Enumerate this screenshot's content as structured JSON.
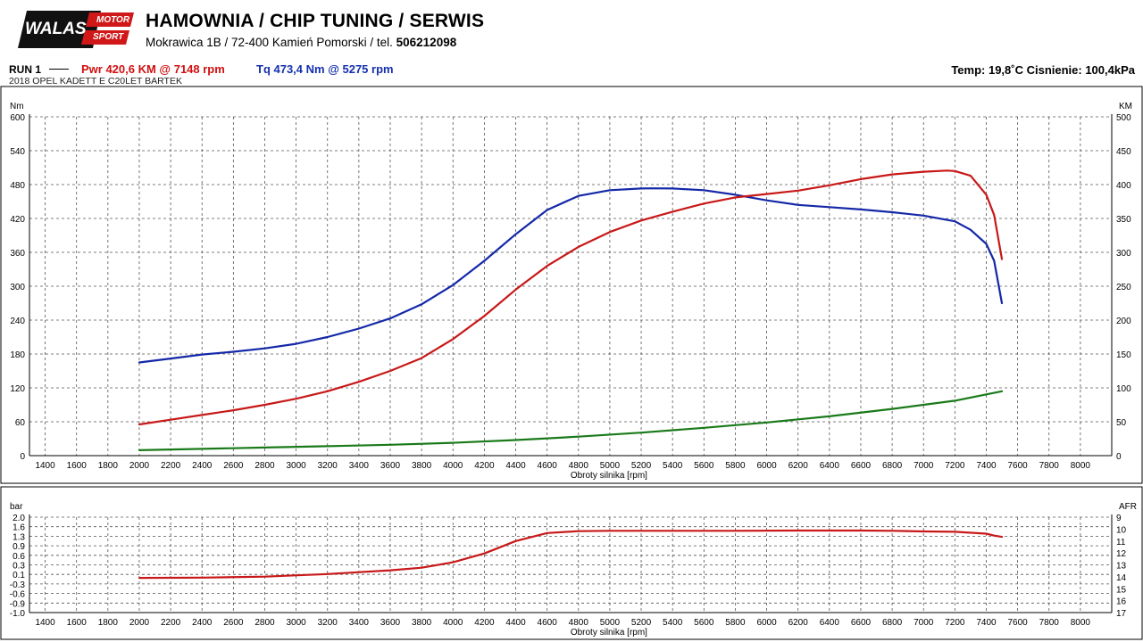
{
  "header": {
    "logo_word": "WALAS",
    "logo_motor": "MOTOR",
    "logo_sport": "SPORT",
    "title": "HAMOWNIA / CHIP TUNING / SERWIS",
    "address": "Mokrawica 1B / 72-400 Kamień Pomorski / tel.",
    "phone": "506212098"
  },
  "run": {
    "label": "RUN 1",
    "pwr_text": "Pwr  420,6 KM @ 7148 rpm",
    "tq_text": "Tq 473,4 Nm @ 5275 rpm",
    "env_text": "Temp: 19,8˚C   Cisnienie: 100,4kPa",
    "car": "2018 OPEL KADETT E C20LET BARTEK"
  },
  "colors": {
    "power": "#c81818",
    "torque": "#1428a8",
    "loss": "#1a7a1a",
    "boost": "#c81818",
    "grid": "#555555"
  },
  "chart_data": [
    {
      "type": "line",
      "xlabel": "Obroty silnika [rpm]",
      "ylabel_left": "Nm",
      "ylabel_right": "KM",
      "xlim": [
        1300,
        8200
      ],
      "ylim_left": [
        0,
        600
      ],
      "ylim_right": [
        0,
        500
      ],
      "x_ticks": [
        1400,
        1600,
        1800,
        2000,
        2200,
        2400,
        2600,
        2800,
        3000,
        3200,
        3400,
        3600,
        3800,
        4000,
        4200,
        4400,
        4600,
        4800,
        5000,
        5200,
        5400,
        5600,
        5800,
        6000,
        6200,
        6400,
        6600,
        6800,
        7000,
        7200,
        7400,
        7600,
        7800,
        8000
      ],
      "y_ticks_left": [
        0,
        60,
        120,
        180,
        240,
        300,
        360,
        420,
        480,
        540,
        600
      ],
      "y_ticks_right": [
        0,
        50,
        100,
        150,
        200,
        250,
        300,
        350,
        400,
        450,
        500
      ],
      "series": [
        {
          "key": "torque",
          "axis": "left",
          "x": [
            2000,
            2200,
            2400,
            2600,
            2800,
            3000,
            3200,
            3400,
            3600,
            3800,
            4000,
            4200,
            4400,
            4600,
            4800,
            5000,
            5200,
            5275,
            5400,
            5600,
            5800,
            6000,
            6200,
            6400,
            6600,
            6800,
            7000,
            7200,
            7300,
            7400,
            7450,
            7500
          ],
          "y": [
            165,
            172,
            179,
            184,
            190,
            198,
            210,
            225,
            243,
            268,
            302,
            345,
            392,
            435,
            460,
            470,
            473,
            473.4,
            473,
            470,
            462,
            452,
            444,
            440,
            436,
            431,
            425,
            415,
            400,
            375,
            345,
            270
          ]
        },
        {
          "key": "power",
          "axis": "right",
          "x": [
            2000,
            2200,
            2400,
            2600,
            2800,
            3000,
            3200,
            3400,
            3600,
            3800,
            4000,
            4200,
            4400,
            4600,
            4800,
            5000,
            5200,
            5400,
            5600,
            5800,
            6000,
            6200,
            6400,
            6600,
            6800,
            7000,
            7148,
            7200,
            7300,
            7400,
            7450,
            7500
          ],
          "y": [
            46,
            53,
            60,
            67,
            75,
            84,
            95,
            109,
            125,
            144,
            172,
            206,
            245,
            280,
            308,
            330,
            347,
            360,
            372,
            381,
            386,
            391,
            399,
            408,
            415,
            419,
            420.6,
            420,
            413,
            385,
            355,
            290
          ]
        },
        {
          "key": "loss",
          "axis": "right",
          "x": [
            2000,
            2400,
            2800,
            3200,
            3600,
            4000,
            4400,
            4800,
            5200,
            5600,
            6000,
            6400,
            6800,
            7200,
            7500
          ],
          "y": [
            8,
            10,
            12,
            14,
            16,
            19,
            23,
            28,
            34,
            41,
            49,
            58,
            69,
            81,
            95
          ]
        }
      ]
    },
    {
      "type": "line",
      "xlabel": "Obroty silnika [rpm]",
      "ylabel_left": "bar",
      "ylabel_right": "AFR",
      "xlim": [
        1300,
        8200
      ],
      "ylim_left": [
        -1.0,
        2.0
      ],
      "ylim_right": [
        17,
        9
      ],
      "x_ticks": [
        1400,
        1600,
        1800,
        2000,
        2200,
        2400,
        2600,
        2800,
        3000,
        3200,
        3400,
        3600,
        3800,
        4000,
        4200,
        4400,
        4600,
        4800,
        5000,
        5200,
        5400,
        5600,
        5800,
        6000,
        6200,
        6400,
        6600,
        6800,
        7000,
        7200,
        7400,
        7600,
        7800,
        8000
      ],
      "y_ticks_left": [
        "2.0",
        "1.6",
        "1.3",
        "0.9",
        "0.6",
        "0.3",
        "0.1",
        "-0.3",
        "-0.6",
        "-0.9",
        "-1.0"
      ],
      "y_ticks_right": [
        9,
        10,
        11,
        12,
        13,
        14,
        15,
        16,
        17
      ],
      "series": [
        {
          "key": "boost",
          "axis": "left",
          "x": [
            2000,
            2400,
            2800,
            3200,
            3600,
            3800,
            4000,
            4200,
            4400,
            4600,
            4800,
            5000,
            5400,
            5800,
            6200,
            6600,
            6800,
            7000,
            7200,
            7400,
            7450,
            7500
          ],
          "y": [
            0.09,
            0.1,
            0.13,
            0.21,
            0.33,
            0.41,
            0.58,
            0.86,
            1.25,
            1.5,
            1.56,
            1.57,
            1.57,
            1.57,
            1.58,
            1.58,
            1.57,
            1.55,
            1.54,
            1.48,
            1.42,
            1.38
          ]
        }
      ]
    }
  ]
}
